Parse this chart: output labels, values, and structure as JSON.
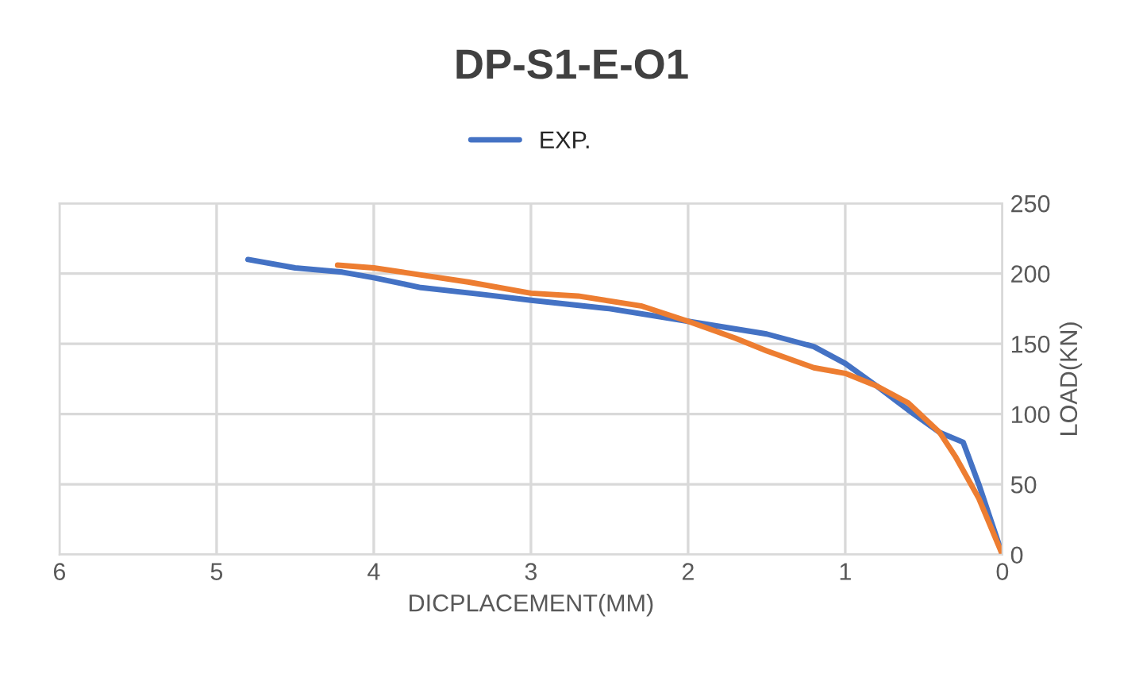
{
  "chart_data": {
    "type": "line",
    "title": "DP-S1-E-O1",
    "xlabel": "DICPLACEMENT(MM)",
    "ylabel": "LOAD(KN)",
    "xlim": [
      6,
      0
    ],
    "xticks": [
      6,
      5,
      4,
      3,
      2,
      1,
      0
    ],
    "ylim": [
      0,
      250
    ],
    "yticks": [
      0,
      50,
      100,
      150,
      200,
      250
    ],
    "grid": true,
    "legend": "top",
    "line_style": "solid",
    "marker": "none",
    "series": [
      {
        "name": "EXP.",
        "color": "#4472c4",
        "x": [
          4.8,
          4.5,
          4.2,
          4.0,
          3.7,
          3.3,
          3.0,
          2.5,
          2.0,
          1.5,
          1.2,
          1.0,
          0.8,
          0.6,
          0.4,
          0.25,
          0.15,
          0
        ],
        "values": [
          210,
          204,
          201,
          197,
          190,
          185,
          181,
          175,
          166,
          157,
          148,
          136,
          120,
          103,
          87,
          80,
          50,
          0
        ]
      },
      {
        "color": "#ed7d31",
        "x": [
          4.23,
          4.0,
          3.7,
          3.4,
          3.0,
          2.7,
          2.3,
          2.0,
          1.7,
          1.5,
          1.2,
          1.0,
          0.8,
          0.6,
          0.4,
          0.3,
          0.15,
          0
        ],
        "values": [
          206,
          204,
          199,
          194,
          186,
          184,
          177,
          166,
          154,
          145,
          133,
          129,
          120,
          108,
          87,
          70,
          40,
          0
        ]
      }
    ]
  }
}
